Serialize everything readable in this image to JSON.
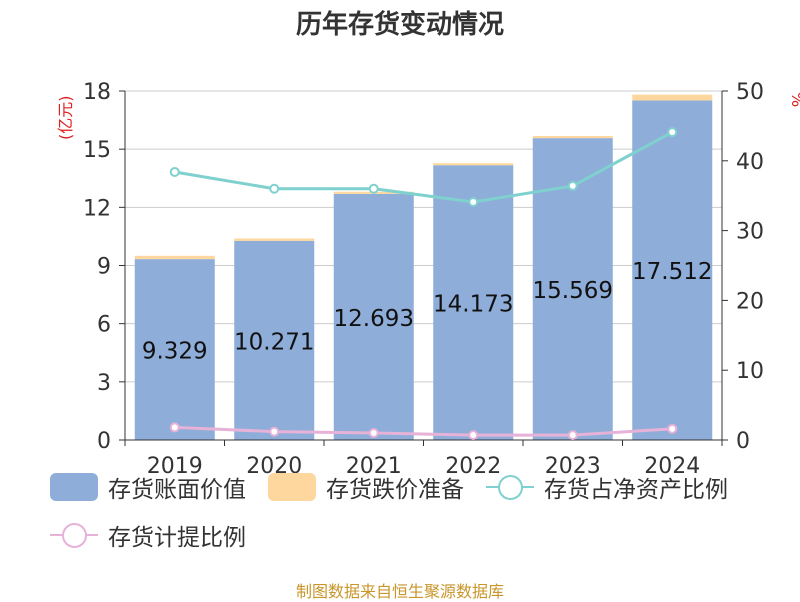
{
  "title": "历年存货变动情况",
  "left_unit": "(亿元)",
  "right_unit": "%",
  "source": "制图数据来自恒生聚源数据库",
  "colors": {
    "bar_book": "#8eadd8",
    "bar_reserve": "#fdd79d",
    "line_net_asset": "#7fd1cf",
    "line_provision": "#e6b2d8",
    "grid": "#cccccc",
    "axis": "#333333",
    "unit": "#e02020"
  },
  "legend": [
    {
      "label": "存货账面价值",
      "kind": "bar",
      "color_key": "bar_book"
    },
    {
      "label": "存货跌价准备",
      "kind": "bar",
      "color_key": "bar_reserve"
    },
    {
      "label": "存货占净资产比例",
      "kind": "line",
      "color_key": "line_net_asset"
    },
    {
      "label": "存货计提比例",
      "kind": "line",
      "color_key": "line_provision"
    }
  ],
  "chart_data": {
    "type": "bar",
    "categories": [
      "2019",
      "2020",
      "2021",
      "2022",
      "2023",
      "2024"
    ],
    "y_left": {
      "label": "(亿元)",
      "ticks": [
        0,
        3,
        6,
        9,
        12,
        15,
        18
      ],
      "lim": [
        0,
        18
      ]
    },
    "y_right": {
      "label": "%",
      "ticks": [
        0,
        10,
        20,
        30,
        40,
        50
      ],
      "lim": [
        0,
        50
      ]
    },
    "grid": true,
    "series": [
      {
        "name": "存货账面价值",
        "type": "bar",
        "axis": "left",
        "stack": "inv",
        "values": [
          9.329,
          10.271,
          12.693,
          14.173,
          15.569,
          17.512
        ],
        "data_labels": [
          "9.329",
          "10.271",
          "12.693",
          "14.173",
          "15.569",
          "17.512"
        ]
      },
      {
        "name": "存货跌价准备",
        "type": "bar",
        "axis": "left",
        "stack": "inv",
        "values": [
          0.17,
          0.12,
          0.11,
          0.1,
          0.11,
          0.3
        ]
      },
      {
        "name": "存货占净资产比例",
        "type": "line",
        "axis": "right",
        "values": [
          38.4,
          36.0,
          36.0,
          34.1,
          36.4,
          44.1
        ]
      },
      {
        "name": "存货计提比例",
        "type": "line",
        "axis": "right",
        "values": [
          1.8,
          1.2,
          1.0,
          0.7,
          0.7,
          1.6
        ]
      }
    ]
  }
}
